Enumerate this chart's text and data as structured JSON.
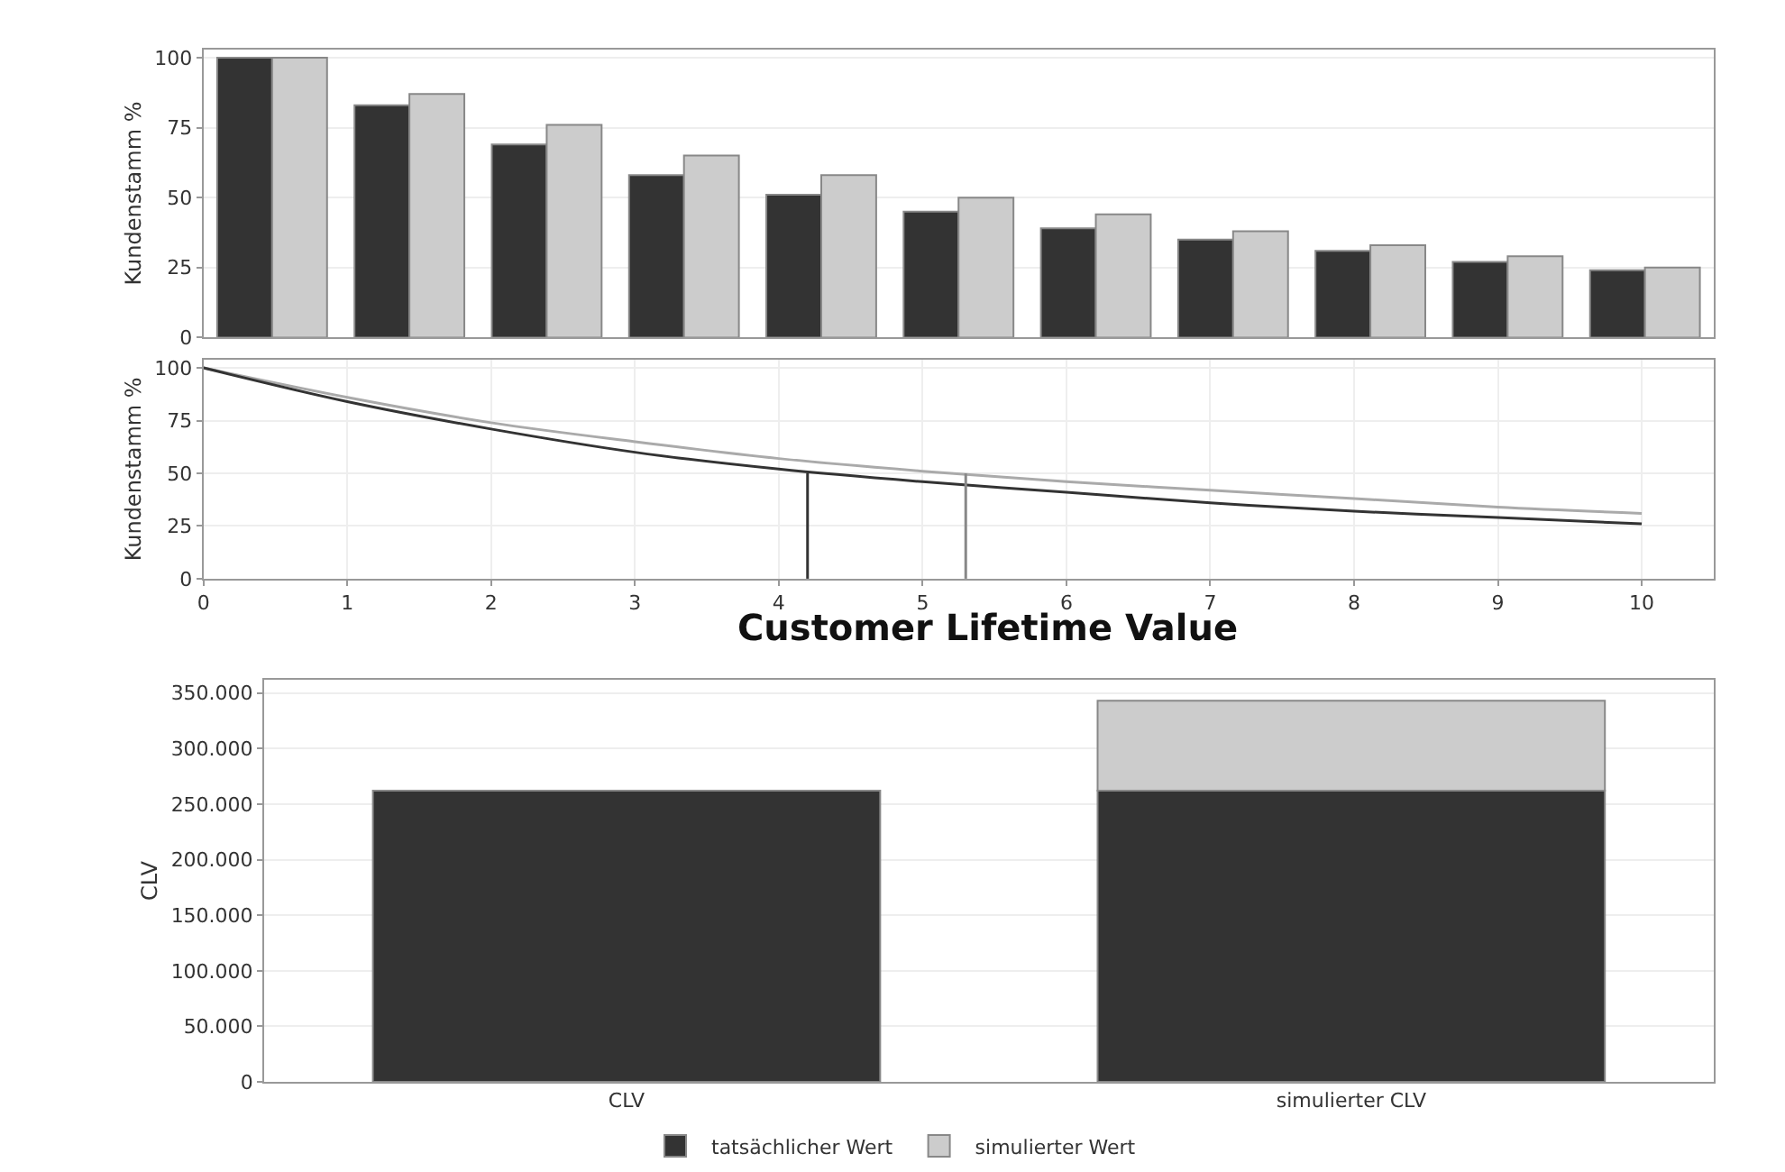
{
  "chart_data": [
    {
      "type": "bar",
      "categories": [
        null,
        null,
        null,
        null,
        null,
        null,
        null,
        null,
        null,
        null,
        null
      ],
      "ylabel": "Kundenstamm %",
      "ylim": [
        0,
        103
      ],
      "yticks": [
        0,
        25,
        50,
        75,
        100
      ],
      "grid": "y",
      "tick_labels": "y",
      "series": [
        {
          "color": "#333333",
          "values": [
            100,
            83,
            69,
            58,
            51,
            45,
            39,
            35,
            31,
            27,
            24
          ]
        },
        {
          "color": "#cccccc",
          "values": [
            100,
            87,
            76,
            65,
            58,
            50,
            44,
            38,
            33,
            29,
            25
          ]
        }
      ]
    },
    {
      "type": "line",
      "ylabel": "Kundenstamm %",
      "xlim": [
        0,
        10.5
      ],
      "xticks": [
        0,
        1,
        2,
        3,
        4,
        5,
        6,
        7,
        8,
        9,
        10
      ],
      "ylim": [
        0,
        104
      ],
      "yticks": [
        0,
        25,
        50,
        75,
        100
      ],
      "grid": true,
      "series": [
        {
          "color": "#aaaaaa",
          "x": [
            0,
            1,
            2,
            3,
            4,
            5,
            6,
            7,
            8,
            9,
            10
          ],
          "values": [
            100,
            86,
            74,
            65,
            57,
            51,
            46,
            42,
            38,
            34,
            31
          ]
        },
        {
          "color": "#333333",
          "x": [
            0,
            1,
            2,
            3,
            4,
            5,
            6,
            7,
            8,
            9,
            10
          ],
          "values": [
            100,
            84,
            71,
            60,
            52,
            46,
            41,
            36,
            32,
            29,
            26
          ]
        },
        {
          "color": "#333333",
          "x": [
            4.2,
            4.2
          ],
          "values": [
            0,
            50
          ]
        },
        {
          "color": "#888888",
          "x": [
            5.3,
            5.3
          ],
          "values": [
            0,
            50
          ]
        }
      ]
    },
    {
      "type": "bar",
      "title": "Customer Lifetime Value",
      "categories": [
        "CLV",
        "simulierter CLV"
      ],
      "stacked": true,
      "ylabel": "CLV",
      "ylim": [
        0,
        362000
      ],
      "yticks": [
        {
          "value": 0,
          "label": "0"
        },
        {
          "value": 50000,
          "label": "50.000"
        },
        {
          "value": 100000,
          "label": "100.000"
        },
        {
          "value": 150000,
          "label": "150.000"
        },
        {
          "value": 200000,
          "label": "200.000"
        },
        {
          "value": 250000,
          "label": "250.000"
        },
        {
          "value": 300000,
          "label": "300.000"
        },
        {
          "value": 350000,
          "label": "350.000"
        }
      ],
      "grid": "y",
      "legend": "bottom",
      "series": [
        {
          "name": "tatsächlicher Wert",
          "color": "#333333",
          "values": [
            262000,
            262000
          ]
        },
        {
          "name": "simulierter Wert",
          "color": "#cccccc",
          "values": [
            null,
            81000
          ]
        }
      ]
    }
  ]
}
